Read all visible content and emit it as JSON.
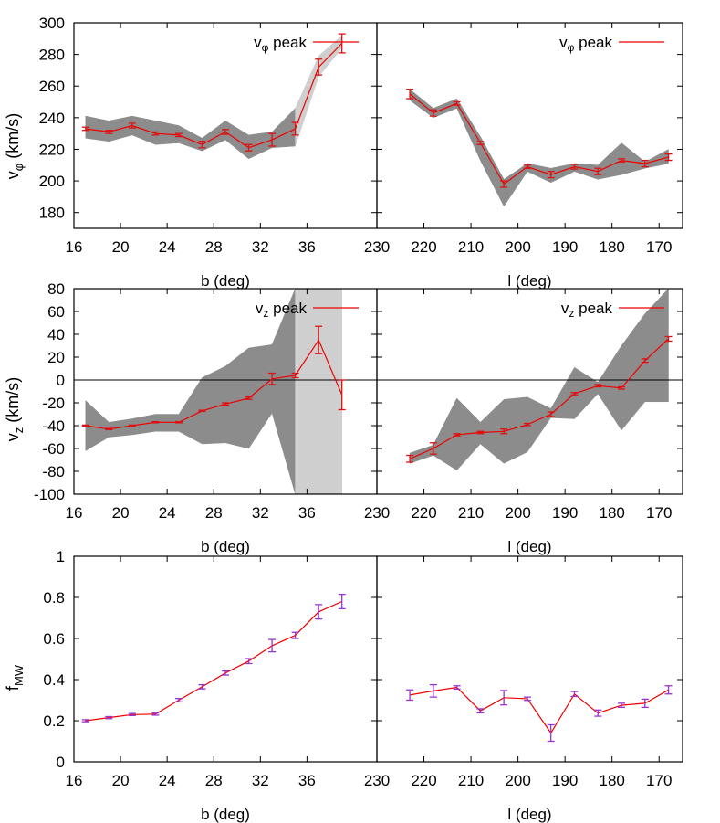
{
  "colors": {
    "line": "#ee0000",
    "band_dark": "#8c8c8c",
    "band_light": "#cfcfcf",
    "errorbar_v": "#dd1111",
    "errorbar_f": "#9933cc"
  },
  "chart_data": [
    {
      "type": "line",
      "panel": "vphi-b",
      "ylabel_main": "v",
      "ylabel_sub": "φ",
      "ylabel_tail": " (km/s)",
      "xlabel": "b (deg)",
      "legend_main": "v",
      "legend_sub": "φ",
      "legend_tail": " peak",
      "legend_position": "top-right",
      "xlim": [
        16,
        42
      ],
      "ylim": [
        170,
        300
      ],
      "xticks": [
        16,
        20,
        24,
        28,
        32,
        36
      ],
      "xtick_labels": [
        "16",
        "20",
        "24",
        "28",
        "32",
        "36"
      ],
      "yticks": [
        180,
        200,
        220,
        240,
        260,
        280,
        300
      ],
      "ytick_labels": [
        "180",
        "200",
        "220",
        "240",
        "260",
        "280",
        "300"
      ],
      "series": [
        {
          "x": [
            17,
            19,
            21,
            23,
            25,
            27,
            29,
            31,
            33,
            35,
            37,
            39
          ],
          "y": [
            233,
            231,
            235,
            230,
            229,
            223,
            231,
            221,
            226,
            233,
            272,
            287
          ],
          "err": [
            1,
            1,
            1.5,
            1,
            1,
            2,
            1.5,
            2,
            4,
            4,
            5,
            6
          ]
        }
      ],
      "band": {
        "lower": [
          227,
          225,
          229,
          223,
          224,
          219,
          226,
          214,
          221,
          222,
          266,
          284
        ],
        "upper": [
          241,
          238,
          241,
          238,
          235,
          227,
          238,
          229,
          231,
          246,
          279,
          292
        ]
      },
      "band_light_from_index": 9
    },
    {
      "type": "line",
      "panel": "vphi-l",
      "xlabel": "l (deg)",
      "legend_main": "v",
      "legend_sub": "φ",
      "legend_tail": " peak",
      "legend_position": "top-right",
      "xlim": [
        230,
        165
      ],
      "ylim": [
        170,
        300
      ],
      "xticks": [
        230,
        220,
        210,
        200,
        190,
        180,
        170
      ],
      "xtick_labels": [
        "230",
        "220",
        "210",
        "200",
        "190",
        "180",
        "170"
      ],
      "yticks": [
        180,
        200,
        220,
        240,
        260,
        280,
        300
      ],
      "series": [
        {
          "x": [
            223,
            218,
            213,
            208,
            203,
            198,
            193,
            188,
            183,
            178,
            173,
            168
          ],
          "y": [
            255,
            243,
            249,
            224,
            198,
            209,
            204,
            209,
            206,
            213,
            211,
            215
          ],
          "err": [
            3,
            2,
            1,
            1,
            2,
            1,
            2,
            1.5,
            2,
            1,
            2,
            2
          ]
        }
      ],
      "band": {
        "lower": [
          251,
          240,
          246,
          213,
          184,
          206,
          199,
          206,
          201,
          204,
          208,
          211
        ],
        "upper": [
          258,
          246,
          252,
          228,
          201,
          211,
          208,
          211,
          210,
          224,
          212,
          220
        ]
      },
      "band_light_from_index": -1
    },
    {
      "type": "line",
      "panel": "vz-b",
      "ylabel_main": "v",
      "ylabel_sub": "z",
      "ylabel_tail": " (km/s)",
      "xlabel": "b (deg)",
      "legend_main": "v",
      "legend_sub": "z",
      "legend_tail": " peak",
      "legend_position": "top-right",
      "xlim": [
        16,
        42
      ],
      "ylim": [
        -100,
        80
      ],
      "xticks": [
        16,
        20,
        24,
        28,
        32,
        36
      ],
      "xtick_labels": [
        "16",
        "20",
        "24",
        "28",
        "32",
        "36"
      ],
      "yticks": [
        -100,
        -80,
        -60,
        -40,
        -20,
        0,
        20,
        40,
        60,
        80
      ],
      "ytick_labels": [
        "-100",
        "-80",
        "-60",
        "-40",
        "-20",
        "0",
        "20",
        "40",
        "60",
        "80"
      ],
      "zero_line": true,
      "series": [
        {
          "x": [
            17,
            19,
            21,
            23,
            25,
            27,
            29,
            31,
            33,
            35,
            37,
            39
          ],
          "y": [
            -40,
            -43,
            -40,
            -37,
            -37,
            -27,
            -21,
            -16,
            1,
            4,
            35,
            -13
          ],
          "err": [
            0.5,
            0.5,
            0.5,
            0.5,
            0.5,
            0.5,
            1,
            1,
            5,
            2,
            12,
            13
          ]
        }
      ],
      "band": {
        "lower": [
          -62,
          -50,
          -48,
          -45,
          -45,
          -56,
          -55,
          -60,
          -29,
          -100,
          -100,
          -100
        ],
        "upper": [
          -18,
          -37,
          -34,
          -30,
          -30,
          2,
          12,
          28,
          31,
          80,
          80,
          80
        ]
      },
      "band_light_from_index": 9
    },
    {
      "type": "line",
      "panel": "vz-l",
      "xlabel": "l (deg)",
      "legend_main": "v",
      "legend_sub": "z",
      "legend_tail": " peak",
      "legend_position": "top-right",
      "xlim": [
        230,
        165
      ],
      "ylim": [
        -100,
        80
      ],
      "xticks": [
        230,
        220,
        210,
        200,
        190,
        180,
        170
      ],
      "xtick_labels": [
        "230",
        "220",
        "210",
        "200",
        "190",
        "180",
        "170"
      ],
      "yticks": [
        -100,
        -80,
        -60,
        -40,
        -20,
        0,
        20,
        40,
        60,
        80
      ],
      "zero_line": true,
      "series": [
        {
          "x": [
            223,
            218,
            213,
            208,
            203,
            198,
            193,
            188,
            183,
            178,
            173,
            168
          ],
          "y": [
            -69,
            -60,
            -48,
            -46,
            -45,
            -39,
            -30,
            -12,
            -5,
            -7,
            17,
            36
          ],
          "err": [
            3,
            5,
            1,
            1,
            2,
            1,
            2,
            1,
            1,
            1,
            1.5,
            2
          ]
        }
      ],
      "band": {
        "lower": [
          -73,
          -66,
          -79,
          -56,
          -73,
          -63,
          -33,
          -34,
          -12,
          -44,
          -19,
          -19
        ],
        "upper": [
          -64,
          -57,
          -16,
          -37,
          -17,
          -15,
          -25,
          11,
          -2,
          30,
          58,
          80
        ]
      },
      "band_light_from_index": -1
    },
    {
      "type": "line",
      "panel": "fmw-b",
      "ylabel_main": "f",
      "ylabel_sub": "MW",
      "ylabel_tail": "",
      "xlabel": "b (deg)",
      "xlim": [
        16,
        42
      ],
      "ylim": [
        0,
        1
      ],
      "xticks": [
        16,
        20,
        24,
        28,
        32,
        36
      ],
      "xtick_labels": [
        "16",
        "20",
        "24",
        "28",
        "32",
        "36"
      ],
      "yticks": [
        0,
        0.2,
        0.4,
        0.6,
        0.8,
        1
      ],
      "ytick_labels": [
        "0",
        "0.2",
        "0.4",
        "0.6",
        "0.8",
        "1"
      ],
      "series": [
        {
          "x": [
            17,
            19,
            21,
            23,
            25,
            27,
            29,
            31,
            33,
            35,
            37,
            39
          ],
          "y": [
            0.2,
            0.215,
            0.23,
            0.232,
            0.3,
            0.365,
            0.432,
            0.49,
            0.565,
            0.615,
            0.73,
            0.78
          ],
          "err": [
            0.005,
            0.005,
            0.005,
            0.005,
            0.008,
            0.01,
            0.01,
            0.012,
            0.03,
            0.015,
            0.035,
            0.035
          ]
        }
      ]
    },
    {
      "type": "line",
      "panel": "fmw-l",
      "xlabel": "l (deg)",
      "xlim": [
        230,
        165
      ],
      "ylim": [
        0,
        1
      ],
      "xticks": [
        230,
        220,
        210,
        200,
        190,
        180,
        170
      ],
      "xtick_labels": [
        "230",
        "220",
        "210",
        "200",
        "190",
        "180",
        "170"
      ],
      "yticks": [
        0,
        0.2,
        0.4,
        0.6,
        0.8,
        1
      ],
      "series": [
        {
          "x": [
            223,
            218,
            213,
            208,
            203,
            198,
            193,
            188,
            183,
            178,
            173,
            168
          ],
          "y": [
            0.325,
            0.345,
            0.362,
            0.248,
            0.312,
            0.307,
            0.14,
            0.33,
            0.237,
            0.275,
            0.285,
            0.35
          ],
          "err": [
            0.025,
            0.03,
            0.008,
            0.01,
            0.035,
            0.008,
            0.04,
            0.012,
            0.015,
            0.01,
            0.02,
            0.02
          ]
        }
      ]
    }
  ]
}
